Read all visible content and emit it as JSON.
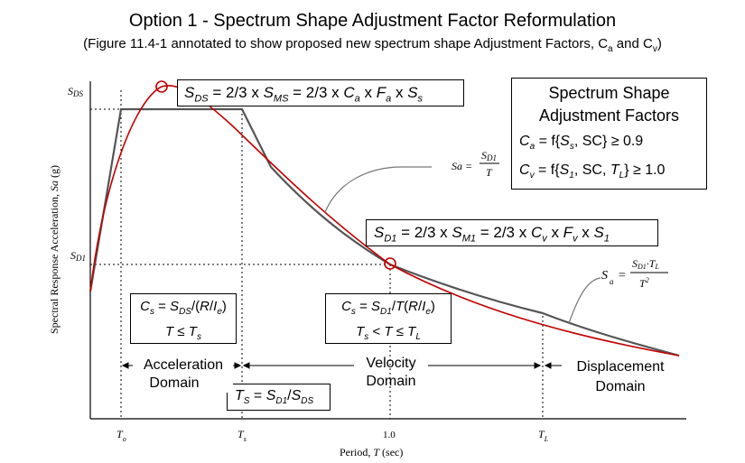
{
  "title": "Option 1 - Spectrum Shape Adjustment Factor Reformulation",
  "subtitle": "(Figure 11.4-1 annotated to show proposed new spectrum shape Adjustment Factors, Ca and Cv)",
  "axes": {
    "ylabel": "Spectral Response Acceleration, Sa (g)",
    "xlabel": "Period, T (sec)",
    "y_ticks": [
      "SDS",
      "SD1"
    ],
    "x_ticks": [
      "To",
      "Ts",
      "1.0",
      "TL"
    ]
  },
  "annotations": {
    "sds_formula": "SDS = 2/3 x SMS = 2/3 x Ca x Fa x Ss",
    "sd1_formula": "SD1 = 2/3 x SM1 = 2/3 x Cv x Fv x S1",
    "factors_title": [
      "Spectrum Shape",
      "Adjustment Factors"
    ],
    "ca": "Ca = f{Ss, SC} ≥ 0.9",
    "cv": "Cv = f{S1, SC, TL} ≥ 1.0",
    "sa_velocity": "Sa = SD1 / T",
    "sa_displacement": "Sa = SD1·TL / T²",
    "cs_accel": [
      "Cs = SDS/(R/Ie)",
      "T ≤ Ts"
    ],
    "cs_velocity": [
      "Cs = SD1/T(R/Ie)",
      "Ts < T ≤ TL"
    ],
    "ts_formula": "TS = SD1/SDS",
    "domains": {
      "acceleration": [
        "Acceleration",
        "Domain"
      ],
      "velocity": [
        "Velocity",
        "Domain"
      ],
      "displacement": [
        "Displacement",
        "Domain"
      ]
    }
  },
  "colors": {
    "spectrum_line": "#555555",
    "proposed_line": "#c00000",
    "frame": "#000000"
  }
}
